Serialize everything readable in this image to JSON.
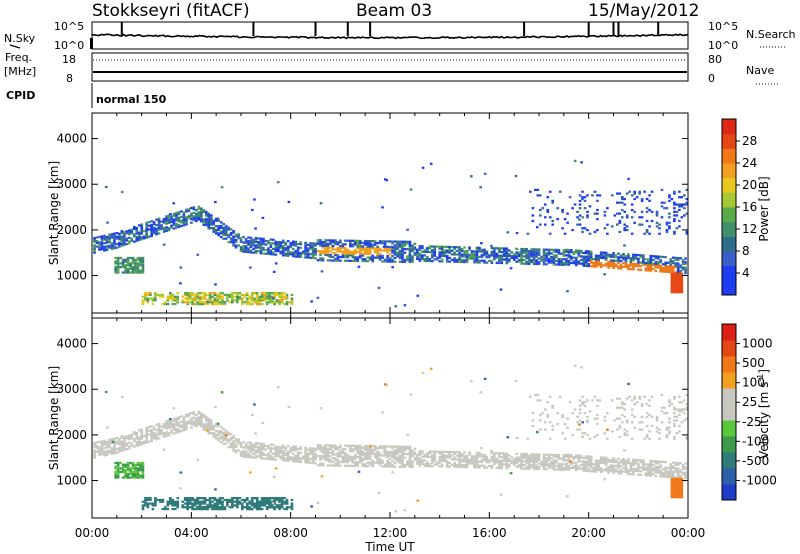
{
  "header": {
    "title": "Stokkseyri (fitACF)",
    "beam": "Beam 03",
    "date": "15/May/2012"
  },
  "top_panels": {
    "nsky_label": "N.Sky",
    "nsearch_label": "N.Search",
    "nsky_ticks_left": [
      "10^5",
      "10^0"
    ],
    "nsky_ticks_right": [
      "10^5",
      "10^0"
    ],
    "freq_label": "Freq.",
    "freq_unit": "[MHz]",
    "freq_ticks": [
      "18",
      "8"
    ],
    "nave_label": "Nave",
    "nave_ticks": [
      "80",
      "0"
    ],
    "cpid_label": "CPID",
    "cpid_value": "normal 150"
  },
  "chart_data": [
    {
      "type": "heatmap",
      "title": "Power",
      "xlabel": "",
      "ylabel": "Slant Range [km]",
      "x_ticks": [
        "00:00",
        "04:00",
        "08:00",
        "12:00",
        "16:00",
        "20:00",
        "00:00"
      ],
      "xlim_hours": [
        0,
        24
      ],
      "y_ticks": [
        1000,
        2000,
        3000,
        4000
      ],
      "ylim": [
        180,
        4560
      ],
      "colorbar": {
        "label": "Power [dB]",
        "range": [
          0,
          32
        ],
        "ticks": [
          4,
          8,
          12,
          16,
          20,
          24,
          28
        ],
        "colors": [
          "#1e3cf0",
          "#1e3cf0",
          "#3a5fc8",
          "#2f6e8a",
          "#3f8f6a",
          "#5aaa4a",
          "#a6c832",
          "#e6c81e",
          "#f0a01e",
          "#f07818",
          "#e64614",
          "#dc2814"
        ]
      }
    },
    {
      "type": "heatmap",
      "title": "Velocity",
      "xlabel": "Time UT",
      "ylabel": "Slant Range [km]",
      "x_ticks": [
        "00:00",
        "04:00",
        "08:00",
        "12:00",
        "16:00",
        "20:00",
        "00:00"
      ],
      "xlim_hours": [
        0,
        24
      ],
      "y_ticks": [
        1000,
        2000,
        3000,
        4000
      ],
      "ylim": [
        180,
        4560
      ],
      "colorbar": {
        "label": "Velocity [m s",
        "label_sup": "-1",
        "label_end": "]",
        "ticks": [
          "1000",
          "500",
          "100",
          "25",
          "-25",
          "-100",
          "-500",
          "-1000"
        ],
        "colors": [
          "#1e3cc8",
          "#2e5fa8",
          "#2f7a7a",
          "#3c9a4a",
          "#5ac83c",
          "#c8c8c0",
          "#c8c8c0",
          "#f0a01e",
          "#f07818",
          "#e64614",
          "#dc1e14"
        ]
      }
    }
  ]
}
